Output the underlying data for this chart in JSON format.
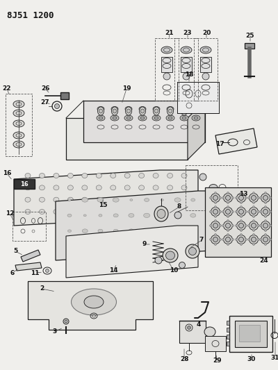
{
  "title": "8J51 1200",
  "bg_color": "#f0efec",
  "fig_width": 4.0,
  "fig_height": 5.33,
  "dpi": 100
}
